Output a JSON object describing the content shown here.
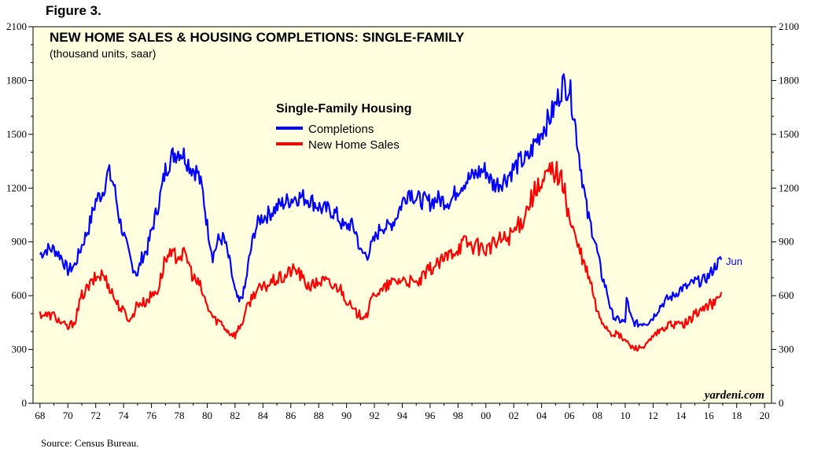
{
  "figure_label": "Figure 3.",
  "source": "Source: Census Bureau.",
  "watermark": "yardeni.com",
  "chart_data": {
    "type": "line",
    "title": "NEW HOME SALES & HOUSING COMPLETIONS: SINGLE-FAMILY",
    "subtitle": "(thousand units, saar)",
    "legend_title": "Single-Family Housing",
    "end_annotation": "Jun",
    "xlabel": "",
    "ylabel": "",
    "xlim": [
      1967.5,
      2020.5
    ],
    "ylim": [
      0,
      2100
    ],
    "y_ticks": [
      0,
      300,
      600,
      900,
      1200,
      1500,
      1800,
      2100
    ],
    "y_tick_labels": [
      "0",
      "300",
      "600",
      "900",
      "1200",
      "1500",
      "1800",
      "2100"
    ],
    "x_ticks": [
      1968,
      1970,
      1972,
      1974,
      1976,
      1978,
      1980,
      1982,
      1984,
      1986,
      1988,
      1990,
      1992,
      1994,
      1996,
      1998,
      2000,
      2002,
      2004,
      2006,
      2008,
      2010,
      2012,
      2014,
      2016,
      2018,
      2020
    ],
    "x_tick_labels": [
      "68",
      "70",
      "72",
      "74",
      "76",
      "78",
      "80",
      "82",
      "84",
      "86",
      "88",
      "90",
      "92",
      "94",
      "96",
      "98",
      "00",
      "02",
      "04",
      "06",
      "08",
      "10",
      "12",
      "14",
      "16",
      "18",
      "20"
    ],
    "colors": {
      "background": "#FFFFE0",
      "completions": "#0000FF",
      "sales": "#FF0000",
      "annotation": "#0000FF"
    },
    "series": [
      {
        "name": "Completions",
        "color": "#0000FF",
        "x": [
          1968.0,
          1968.5,
          1969.0,
          1969.5,
          1970.0,
          1970.5,
          1971.0,
          1971.5,
          1972.0,
          1972.5,
          1972.9,
          1973.3,
          1973.7,
          1974.2,
          1974.6,
          1975.0,
          1975.3,
          1975.7,
          1976.0,
          1976.3,
          1976.7,
          1977.0,
          1977.3,
          1977.6,
          1978.0,
          1978.4,
          1978.8,
          1979.3,
          1979.7,
          1980.0,
          1980.4,
          1980.8,
          1981.2,
          1981.6,
          1982.0,
          1982.3,
          1982.7,
          1983.0,
          1983.4,
          1983.8,
          1984.3,
          1984.8,
          1985.3,
          1985.8,
          1986.3,
          1986.8,
          1987.3,
          1987.8,
          1988.3,
          1988.8,
          1989.3,
          1989.8,
          1990.3,
          1990.7,
          1991.0,
          1991.5,
          1992.0,
          1992.5,
          1993.0,
          1993.5,
          1994.0,
          1994.5,
          1995.0,
          1995.5,
          1996.0,
          1996.5,
          1997.0,
          1997.5,
          1998.0,
          1998.5,
          1999.0,
          1999.5,
          2000.0,
          2000.5,
          2001.0,
          2001.5,
          2002.0,
          2002.5,
          2003.0,
          2003.5,
          2004.0,
          2004.5,
          2005.0,
          2005.5,
          2006.0,
          2006.3,
          2006.6,
          2007.0,
          2007.3,
          2007.7,
          2008.0,
          2008.3,
          2008.7,
          2009.0,
          2009.3,
          2009.7,
          2010.0,
          2010.1,
          2010.3,
          2010.6,
          2011.0,
          2011.3,
          2011.6,
          2012.0,
          2012.5,
          2013.0,
          2013.5,
          2014.0,
          2014.5,
          2015.0,
          2015.5,
          2016.0,
          2016.5,
          2016.9
        ],
        "values": [
          830,
          860,
          860,
          820,
          740,
          770,
          880,
          980,
          1130,
          1180,
          1290,
          1220,
          1030,
          880,
          770,
          720,
          810,
          860,
          960,
          1050,
          1180,
          1300,
          1350,
          1390,
          1410,
          1380,
          1320,
          1290,
          1170,
          990,
          820,
          910,
          920,
          790,
          620,
          560,
          640,
          800,
          960,
          1030,
          1050,
          1080,
          1110,
          1130,
          1150,
          1150,
          1140,
          1110,
          1080,
          1080,
          1050,
          980,
          1000,
          950,
          840,
          830,
          910,
          990,
          980,
          1030,
          1120,
          1190,
          1140,
          1130,
          1120,
          1140,
          1130,
          1130,
          1200,
          1240,
          1260,
          1290,
          1300,
          1220,
          1230,
          1260,
          1310,
          1350,
          1360,
          1450,
          1520,
          1580,
          1660,
          1780,
          1760,
          1620,
          1440,
          1210,
          1050,
          950,
          840,
          720,
          620,
          510,
          470,
          460,
          450,
          600,
          500,
          450,
          440,
          450,
          450,
          480,
          540,
          580,
          600,
          640,
          650,
          680,
          680,
          710,
          770,
          800
        ]
      },
      {
        "name": "New Home Sales",
        "color": "#FF0000",
        "x": [
          1968.0,
          1968.5,
          1969.0,
          1969.5,
          1970.0,
          1970.5,
          1971.0,
          1971.5,
          1972.0,
          1972.5,
          1973.0,
          1973.5,
          1974.0,
          1974.5,
          1975.0,
          1975.5,
          1976.0,
          1976.5,
          1977.0,
          1977.5,
          1978.0,
          1978.5,
          1979.0,
          1979.5,
          1980.0,
          1980.5,
          1981.0,
          1981.5,
          1982.0,
          1982.5,
          1983.0,
          1983.5,
          1984.0,
          1984.5,
          1985.0,
          1985.5,
          1986.0,
          1986.5,
          1987.0,
          1987.5,
          1988.0,
          1988.5,
          1989.0,
          1989.5,
          1990.0,
          1990.5,
          1991.0,
          1991.5,
          1992.0,
          1992.5,
          1993.0,
          1993.5,
          1994.0,
          1994.5,
          1995.0,
          1995.5,
          1996.0,
          1996.5,
          1997.0,
          1997.5,
          1998.0,
          1998.5,
          1999.0,
          1999.5,
          2000.0,
          2000.5,
          2001.0,
          2001.5,
          2002.0,
          2002.5,
          2003.0,
          2003.5,
          2004.0,
          2004.5,
          2005.0,
          2005.5,
          2006.0,
          2006.5,
          2007.0,
          2007.5,
          2008.0,
          2008.5,
          2009.0,
          2009.5,
          2010.0,
          2010.5,
          2011.0,
          2011.5,
          2012.0,
          2012.5,
          2013.0,
          2013.5,
          2014.0,
          2014.5,
          2015.0,
          2015.5,
          2016.0,
          2016.5,
          2016.9
        ],
        "values": [
          500,
          490,
          490,
          450,
          420,
          460,
          600,
          650,
          700,
          720,
          650,
          560,
          510,
          460,
          560,
          560,
          600,
          640,
          810,
          820,
          830,
          820,
          700,
          650,
          540,
          470,
          450,
          400,
          380,
          450,
          560,
          630,
          640,
          670,
          690,
          700,
          740,
          740,
          670,
          650,
          680,
          680,
          650,
          650,
          580,
          510,
          490,
          500,
          620,
          620,
          660,
          680,
          690,
          680,
          660,
          700,
          750,
          770,
          800,
          840,
          870,
          900,
          880,
          870,
          860,
          880,
          910,
          920,
          960,
          1000,
          1100,
          1180,
          1200,
          1290,
          1300,
          1230,
          1030,
          900,
          780,
          680,
          500,
          440,
          390,
          380,
          350,
          310,
          310,
          320,
          370,
          400,
          430,
          440,
          440,
          450,
          500,
          520,
          550,
          560,
          620
        ]
      }
    ]
  }
}
